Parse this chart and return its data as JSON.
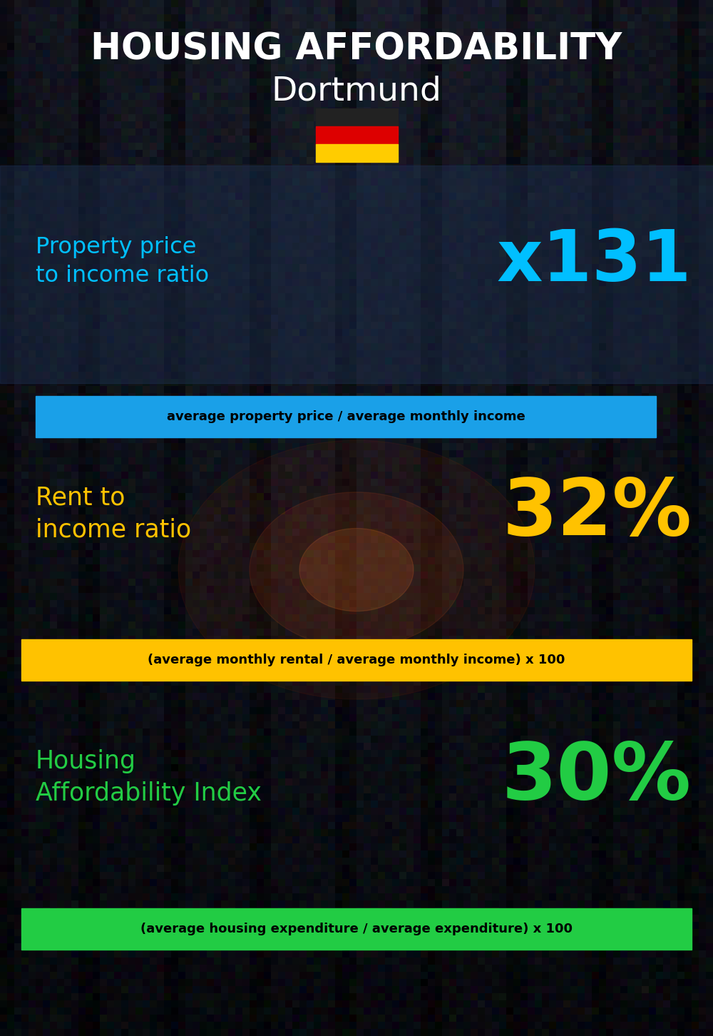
{
  "title_line1": "HOUSING AFFORDABILITY",
  "title_line2": "Dortmund",
  "bg_color": "#0d1117",
  "title1_color": "#ffffff",
  "title2_color": "#ffffff",
  "section1_label": "Property price\nto income ratio",
  "section1_value": "x131",
  "section1_label_color": "#00bfff",
  "section1_value_color": "#00bfff",
  "section1_formula": "average property price / average monthly income",
  "section1_formula_bg": "#1aa0e8",
  "section1_formula_color": "#000000",
  "section2_label": "Rent to\nincome ratio",
  "section2_value": "32%",
  "section2_label_color": "#ffc200",
  "section2_value_color": "#ffc200",
  "section2_formula": "(average monthly rental / average monthly income) x 100",
  "section2_formula_bg": "#ffc200",
  "section2_formula_color": "#000000",
  "section3_label": "Housing\nAffordability Index",
  "section3_value": "30%",
  "section3_label_color": "#22cc44",
  "section3_value_color": "#22cc44",
  "section3_formula": "(average housing expenditure / average expenditure) x 100",
  "section3_formula_bg": "#22cc44",
  "section3_formula_color": "#000000",
  "flag_black": "#222222",
  "flag_red": "#dd0000",
  "flag_gold": "#ffcc00",
  "panel1_alpha": 0.45,
  "panel1_color": "#1e3050"
}
